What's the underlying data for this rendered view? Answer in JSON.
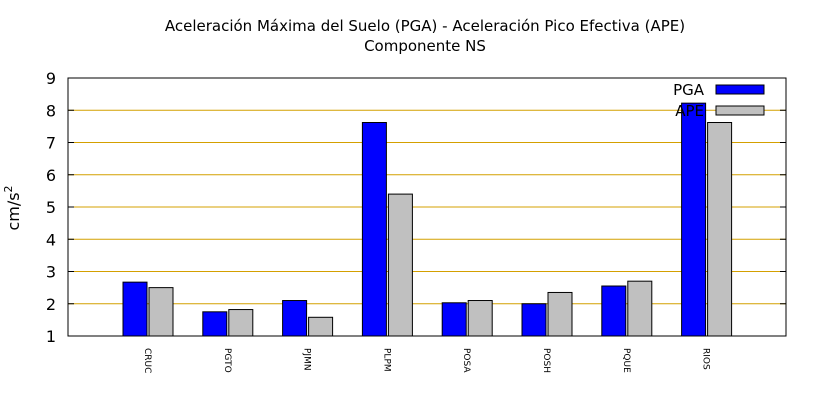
{
  "chart_data": {
    "type": "bar",
    "title": "Aceleración Máxima del Suelo (PGA) -  Aceleración Pico Efectiva (APE)",
    "subtitle": "Componente NS",
    "ylabel_base": "cm/s",
    "ylabel_exp": "2",
    "ylim": [
      1,
      9
    ],
    "yticks": [
      1,
      2,
      3,
      4,
      5,
      6,
      7,
      8,
      9
    ],
    "grid": true,
    "legend_position": "top-right",
    "categories": [
      "CRUC",
      "PGTO",
      "PJMN",
      "PLPM",
      "POSA",
      "POSH",
      "PQUE",
      "RIOS"
    ],
    "series": [
      {
        "name": "PGA",
        "color": "#0000ff",
        "values": [
          2.67,
          1.75,
          2.1,
          7.62,
          2.03,
          2.0,
          2.55,
          8.22
        ]
      },
      {
        "name": "APE",
        "color": "#c0c0c0",
        "values": [
          2.5,
          1.82,
          1.58,
          5.4,
          2.1,
          2.35,
          2.7,
          7.62
        ]
      }
    ],
    "grid_color": "#d4a000"
  }
}
